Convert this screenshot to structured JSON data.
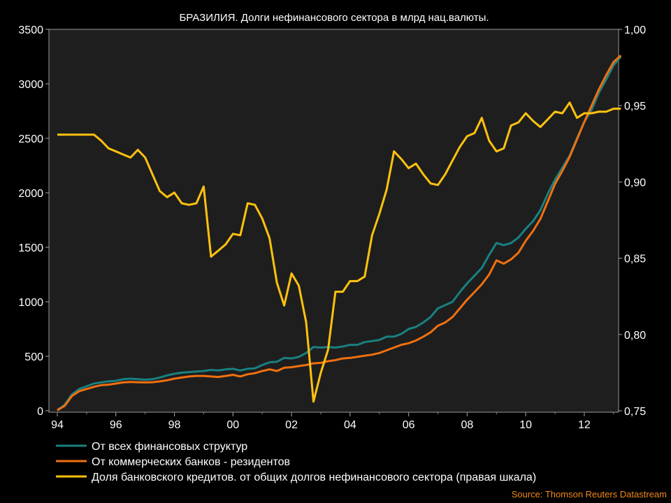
{
  "chart_data": {
    "type": "line",
    "title": "БРАЗИЛИЯ. Долги нефинансового сектора в млрд нац.валюты.",
    "source": "Source: Thomson Reuters Datastream",
    "left_axis": {
      "min": 0,
      "max": 3500,
      "ticks": [
        "0",
        "500",
        "1000",
        "1500",
        "2000",
        "2500",
        "3000",
        "3500"
      ]
    },
    "right_axis": {
      "min": 0.75,
      "max": 1.0,
      "ticks": [
        "0,75",
        "0,80",
        "0,85",
        "0,90",
        "0,95",
        "1,00"
      ]
    },
    "x_axis": {
      "min": 1994,
      "max": 2014,
      "ticks": [
        "94",
        "96",
        "98",
        "00",
        "02",
        "04",
        "06",
        "08",
        "10",
        "12"
      ]
    },
    "grid": false,
    "legend_position": "bottom",
    "series": [
      {
        "name": "От всех финансовых структур",
        "axis": "left",
        "color": "#1a8080",
        "x": [
          1994.0,
          1994.25,
          1994.5,
          1994.75,
          1995.0,
          1995.25,
          1995.5,
          1995.75,
          1996.0,
          1996.25,
          1996.5,
          1996.75,
          1997.0,
          1997.25,
          1997.5,
          1997.75,
          1998.0,
          1998.25,
          1998.5,
          1998.75,
          1999.0,
          1999.25,
          1999.5,
          1999.75,
          2000.0,
          2000.25,
          2000.5,
          2000.75,
          2001.0,
          2001.25,
          2001.5,
          2001.75,
          2002.0,
          2002.25,
          2002.5,
          2002.75,
          2003.0,
          2003.25,
          2003.5,
          2003.75,
          2004.0,
          2004.25,
          2004.5,
          2004.75,
          2005.0,
          2005.25,
          2005.5,
          2005.75,
          2006.0,
          2006.25,
          2006.5,
          2006.75,
          2007.0,
          2007.25,
          2007.5,
          2007.75,
          2008.0,
          2008.25,
          2008.5,
          2008.75,
          2009.0,
          2009.25,
          2009.5,
          2009.75,
          2010.0,
          2010.25,
          2010.5,
          2010.75,
          2011.0,
          2011.25,
          2011.5,
          2011.75,
          2012.0,
          2012.25,
          2012.5,
          2012.75,
          2013.0,
          2013.25
        ],
        "values": [
          5,
          55,
          150,
          200,
          225,
          250,
          260,
          270,
          275,
          290,
          295,
          290,
          285,
          290,
          305,
          325,
          340,
          350,
          355,
          360,
          365,
          375,
          370,
          380,
          385,
          370,
          385,
          390,
          420,
          445,
          450,
          485,
          480,
          495,
          530,
          585,
          580,
          585,
          580,
          590,
          605,
          605,
          630,
          640,
          650,
          680,
          680,
          705,
          750,
          770,
          810,
          860,
          940,
          970,
          1000,
          1090,
          1170,
          1240,
          1310,
          1430,
          1540,
          1520,
          1540,
          1590,
          1670,
          1740,
          1840,
          1990,
          2120,
          2230,
          2340,
          2500,
          2650,
          2760,
          2920,
          3040,
          3170,
          3250
        ]
      },
      {
        "name": "От коммерческих банков - резидентов",
        "axis": "left",
        "color": "#f07010",
        "x": [
          1994.0,
          1994.25,
          1994.5,
          1994.75,
          1995.0,
          1995.25,
          1995.5,
          1995.75,
          1996.0,
          1996.25,
          1996.5,
          1996.75,
          1997.0,
          1997.25,
          1997.5,
          1997.75,
          1998.0,
          1998.25,
          1998.5,
          1998.75,
          1999.0,
          1999.25,
          1999.5,
          1999.75,
          2000.0,
          2000.25,
          2000.5,
          2000.75,
          2001.0,
          2001.25,
          2001.5,
          2001.75,
          2002.0,
          2002.25,
          2002.5,
          2002.75,
          2003.0,
          2003.25,
          2003.5,
          2003.75,
          2004.0,
          2004.25,
          2004.5,
          2004.75,
          2005.0,
          2005.25,
          2005.5,
          2005.75,
          2006.0,
          2006.25,
          2006.5,
          2006.75,
          2007.0,
          2007.25,
          2007.5,
          2007.75,
          2008.0,
          2008.25,
          2008.5,
          2008.75,
          2009.0,
          2009.25,
          2009.5,
          2009.75,
          2010.0,
          2010.25,
          2010.5,
          2010.75,
          2011.0,
          2011.25,
          2011.5,
          2011.75,
          2012.0,
          2012.25,
          2012.5,
          2012.75,
          2013.0,
          2013.25
        ],
        "values": [
          5,
          45,
          135,
          180,
          200,
          220,
          235,
          240,
          250,
          260,
          265,
          262,
          260,
          262,
          270,
          280,
          295,
          305,
          315,
          320,
          320,
          315,
          310,
          320,
          330,
          315,
          335,
          345,
          365,
          380,
          365,
          395,
          400,
          410,
          420,
          435,
          440,
          455,
          465,
          480,
          485,
          495,
          505,
          515,
          530,
          555,
          580,
          605,
          620,
          645,
          680,
          720,
          780,
          810,
          860,
          940,
          1020,
          1090,
          1160,
          1250,
          1380,
          1350,
          1390,
          1450,
          1560,
          1650,
          1760,
          1920,
          2080,
          2200,
          2330,
          2490,
          2650,
          2800,
          2950,
          3080,
          3200,
          3260
        ]
      },
      {
        "name": "Доля банковского кредитов. от общих долгов нефинансового сектора (правая шкала)",
        "axis": "right",
        "color": "#ffc20e",
        "x": [
          1994.0,
          1994.25,
          1994.5,
          1994.75,
          1995.0,
          1995.25,
          1995.5,
          1995.75,
          1996.0,
          1996.25,
          1996.5,
          1996.75,
          1997.0,
          1997.25,
          1997.5,
          1997.75,
          1998.0,
          1998.25,
          1998.5,
          1998.75,
          1999.0,
          1999.25,
          1999.5,
          1999.75,
          2000.0,
          2000.25,
          2000.5,
          2000.75,
          2001.0,
          2001.25,
          2001.5,
          2001.75,
          2002.0,
          2002.25,
          2002.5,
          2002.75,
          2003.0,
          2003.25,
          2003.5,
          2003.75,
          2004.0,
          2004.25,
          2004.5,
          2004.75,
          2005.0,
          2005.25,
          2005.5,
          2005.75,
          2006.0,
          2006.25,
          2006.5,
          2006.75,
          2007.0,
          2007.25,
          2007.5,
          2007.75,
          2008.0,
          2008.25,
          2008.5,
          2008.75,
          2009.0,
          2009.25,
          2009.5,
          2009.75,
          2010.0,
          2010.25,
          2010.5,
          2010.75,
          2011.0,
          2011.25,
          2011.5,
          2011.75,
          2012.0,
          2012.25,
          2012.5,
          2012.75,
          2013.0,
          2013.25
        ],
        "values": [
          0.931,
          0.931,
          0.931,
          0.931,
          0.931,
          0.931,
          0.927,
          0.922,
          0.92,
          0.918,
          0.916,
          0.921,
          0.916,
          0.905,
          0.894,
          0.89,
          0.893,
          0.886,
          0.885,
          0.886,
          0.897,
          0.851,
          0.855,
          0.859,
          0.866,
          0.865,
          0.886,
          0.885,
          0.876,
          0.863,
          0.834,
          0.819,
          0.84,
          0.832,
          0.808,
          0.756,
          0.775,
          0.79,
          0.828,
          0.828,
          0.835,
          0.835,
          0.838,
          0.865,
          0.879,
          0.895,
          0.92,
          0.915,
          0.909,
          0.912,
          0.905,
          0.899,
          0.898,
          0.905,
          0.914,
          0.923,
          0.93,
          0.932,
          0.942,
          0.927,
          0.92,
          0.922,
          0.937,
          0.939,
          0.945,
          0.94,
          0.936,
          0.941,
          0.946,
          0.945,
          0.952,
          0.942,
          0.945,
          0.945,
          0.946,
          0.946,
          0.948,
          0.948
        ]
      }
    ]
  }
}
